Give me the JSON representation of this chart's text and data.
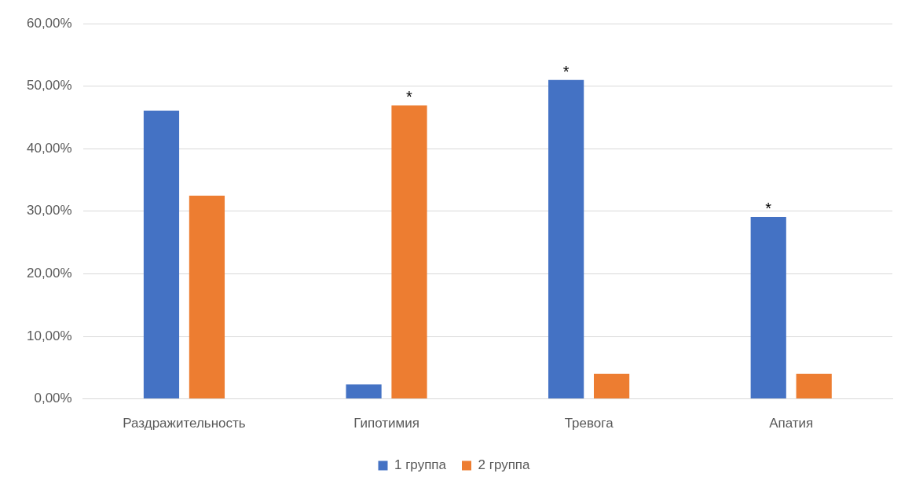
{
  "chart_data": {
    "type": "bar",
    "categories": [
      "Раздражительность",
      "Гипотимия",
      "Тревога",
      "Апатия"
    ],
    "series": [
      {
        "name": "1 группа",
        "color": "#4472c4",
        "values": [
          46.1,
          2.3,
          51.0,
          29.1
        ]
      },
      {
        "name": "2 группа",
        "color": "#ed7d31",
        "values": [
          32.5,
          46.9,
          4.0,
          4.0
        ]
      }
    ],
    "ylim": [
      0,
      60
    ],
    "yticks": [
      {
        "value": 0,
        "label": "0,00%"
      },
      {
        "value": 10,
        "label": "10,00%"
      },
      {
        "value": 20,
        "label": "20,00%"
      },
      {
        "value": 30,
        "label": "30,00%"
      },
      {
        "value": 40,
        "label": "40,00%"
      },
      {
        "value": 50,
        "label": "50,00%"
      },
      {
        "value": 60,
        "label": "60,00%"
      }
    ],
    "grid": "y",
    "legend": "bottom",
    "annotations": [
      "*",
      "*",
      "*"
    ]
  }
}
